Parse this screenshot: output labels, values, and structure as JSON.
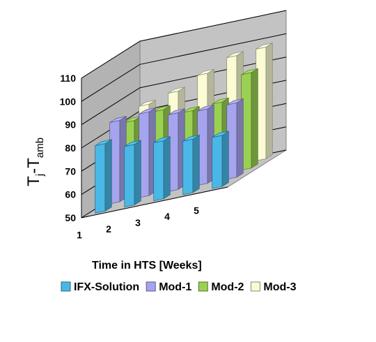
{
  "chart_data": {
    "type": "bar",
    "style": "3d-clustered",
    "categories": [
      "1",
      "2",
      "3",
      "4",
      "5"
    ],
    "series": [
      {
        "name": "IFX-Solution",
        "values": [
          79,
          76,
          75,
          73,
          72
        ],
        "color": "#4ab8e6"
      },
      {
        "name": "Mod-1",
        "values": [
          85,
          86,
          83,
          82,
          82
        ],
        "color": "#a6a4ee"
      },
      {
        "name": "Mod-2",
        "values": [
          81,
          83,
          80,
          81,
          91
        ],
        "color": "#9bd153"
      },
      {
        "name": "Mod-3",
        "values": [
          84,
          87,
          92,
          97,
          98
        ],
        "color": "#fbfbd4"
      }
    ],
    "ylabel_main": "T",
    "ylabel_sub1": "j",
    "ylabel_dash": "-T",
    "ylabel_sub2": "amb",
    "xlabel": "Time in HTS [Weeks]",
    "ylim": [
      50,
      110
    ],
    "yticks": [
      "50",
      "60",
      "70",
      "80",
      "90",
      "100",
      "110"
    ],
    "grid": true,
    "legend": "bottom",
    "wall_color": "#c3c3c3",
    "floor_color": "#c3c3c3"
  }
}
